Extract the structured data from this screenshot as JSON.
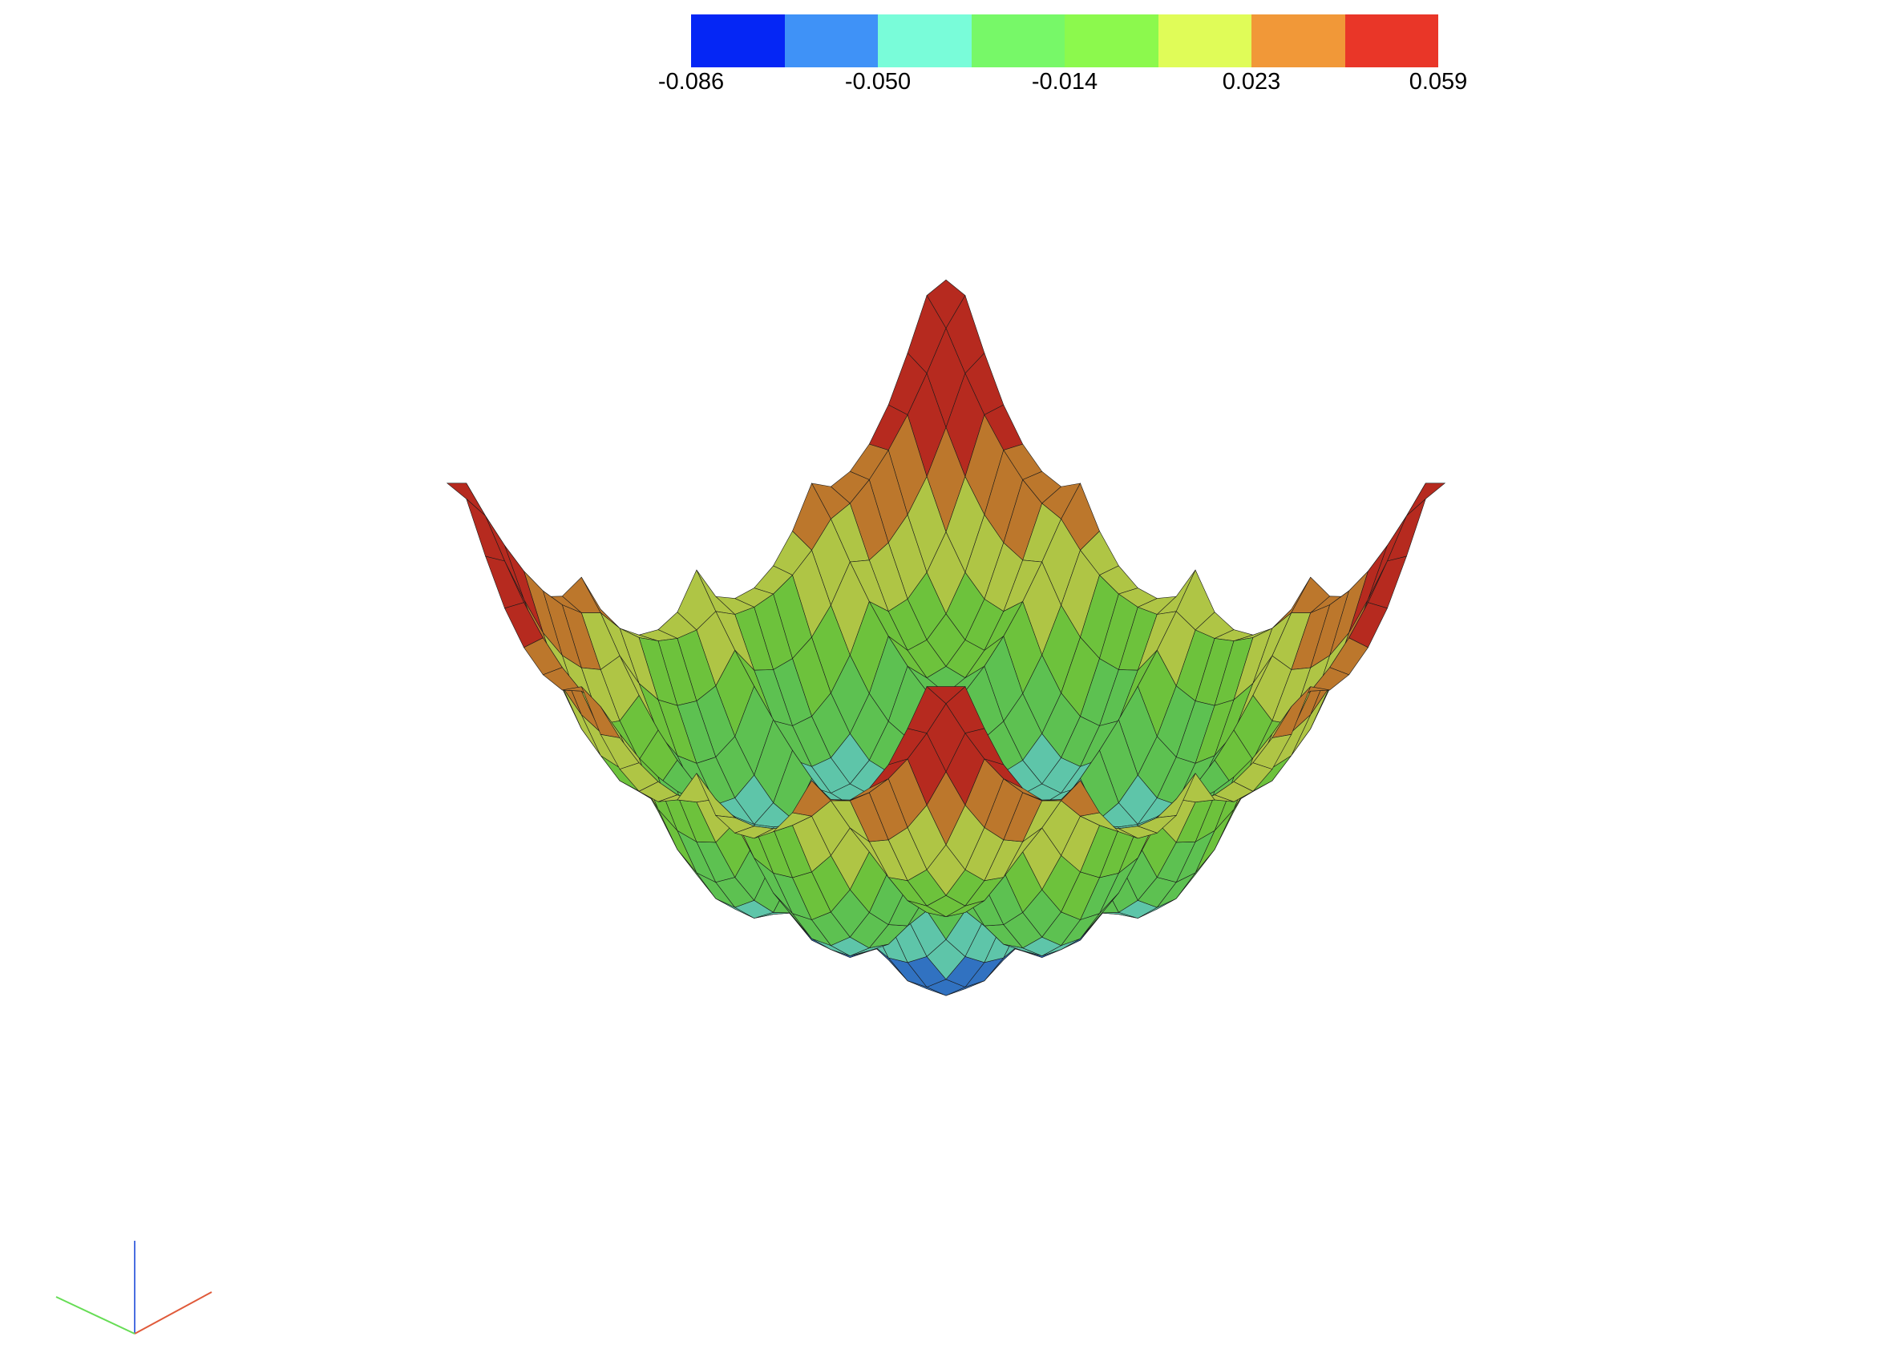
{
  "colorbar": {
    "colors": [
      "#0526f5",
      "#3f92f7",
      "#79fcd9",
      "#77f868",
      "#8cf94d",
      "#e0fc58",
      "#f19838",
      "#e93628"
    ],
    "tick_labels": [
      "-0.086",
      "-0.050",
      "-0.014",
      "0.023",
      "0.059"
    ]
  },
  "chart_data": {
    "type": "surface-3d",
    "field_range": [
      -0.086,
      0.059
    ],
    "color_levels": 8,
    "colormap": [
      "#0526f5",
      "#3f92f7",
      "#79fcd9",
      "#77f868",
      "#8cf94d",
      "#e0fc58",
      "#f19838",
      "#e93628"
    ],
    "tick_values": [
      -0.086,
      -0.05,
      -0.014,
      0.023,
      0.059
    ],
    "axes_triad": {
      "x": "#e05a3a",
      "y": "#66dd55",
      "z": "#4a6ee0"
    }
  }
}
